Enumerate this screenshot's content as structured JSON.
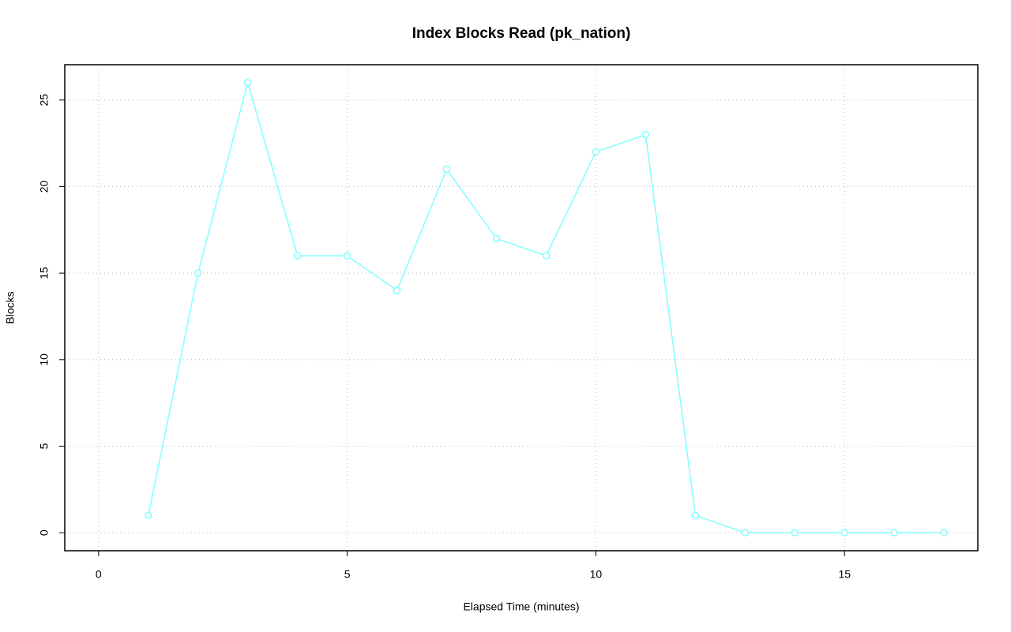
{
  "chart_data": {
    "type": "line",
    "title": "Index Blocks Read (pk_nation)",
    "x_label": "Elapsed Time (minutes)",
    "y_label": "Blocks",
    "x": [
      1,
      2,
      3,
      4,
      5,
      6,
      7,
      8,
      9,
      10,
      11,
      12,
      13,
      14,
      15,
      16,
      17
    ],
    "series": [
      {
        "color": "#80ffff",
        "values": [
          1,
          15,
          26,
          16,
          16,
          14,
          21,
          17,
          16,
          22,
          23,
          1,
          0,
          0,
          0,
          0,
          0
        ]
      }
    ],
    "xlim": [
      -0.68,
      17.68
    ],
    "xticks": [
      0,
      5,
      10,
      15
    ],
    "ylim": [
      -1.04,
      27.04
    ],
    "yticks": [
      0,
      5,
      10,
      15,
      20,
      25
    ],
    "grid": true
  }
}
